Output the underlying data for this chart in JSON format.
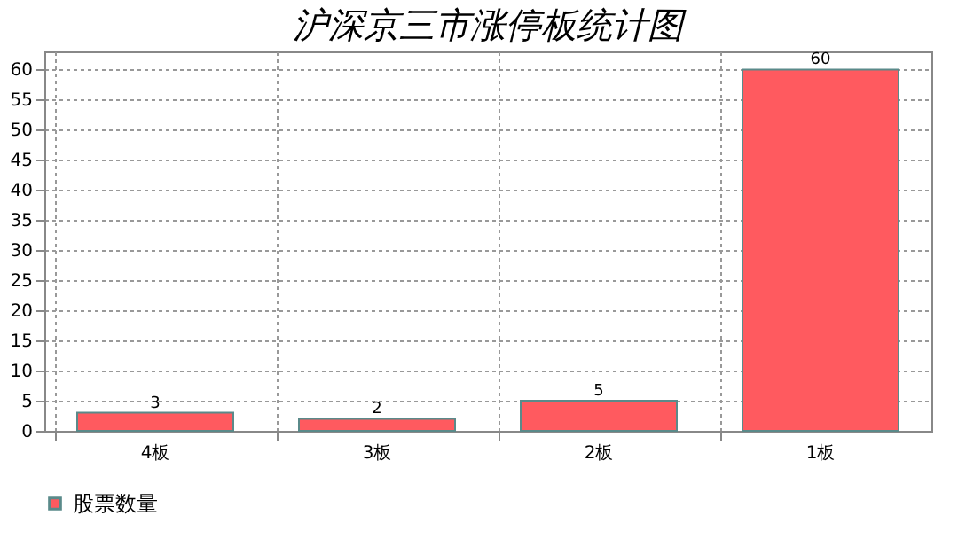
{
  "chart_data": {
    "type": "bar",
    "title": "沪深京三市涨停板统计图",
    "categories": [
      "4板",
      "3板",
      "2板",
      "1板"
    ],
    "series": [
      {
        "name": "股票数量",
        "color": "#ff5a5f",
        "values": [
          3,
          2,
          5,
          60
        ]
      }
    ],
    "ylim": [
      0,
      63
    ],
    "yticks": [
      0,
      5,
      10,
      15,
      20,
      25,
      30,
      35,
      40,
      45,
      50,
      55,
      60
    ],
    "grid": true,
    "legend": "bottom",
    "data_labels": true
  }
}
